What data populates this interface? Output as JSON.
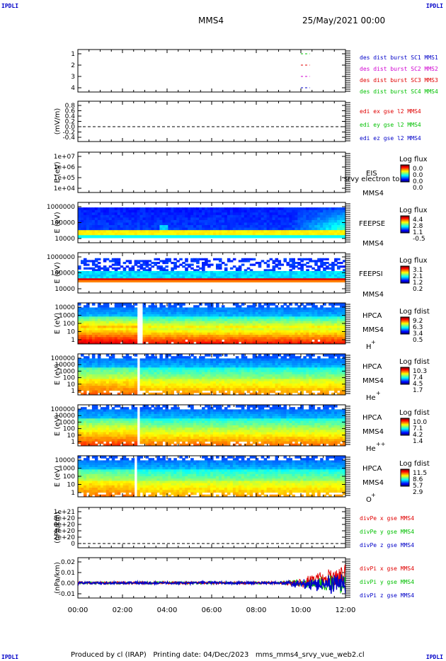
{
  "corners": {
    "top_left": "IPDLI",
    "top_right": "IPDLI",
    "bottom_left": "IPDLI",
    "bottom_right": "IPDLI"
  },
  "header": {
    "spacecraft": "MMS4",
    "date": "25/May/2021 00:00"
  },
  "footer": {
    "text": "Produced by cl (IRAP)   Printing date: 04/Dec/2023   mms_mms4_srvy_vue_web2.cl"
  },
  "colors": {
    "blue": "#0000c8",
    "red": "#e00000",
    "green": "#00c000",
    "magenta": "#d000d0"
  },
  "chart_data": [
    {
      "type": "line",
      "panel": "dist_burst",
      "ylabel": "",
      "yticks": [
        "1",
        "2",
        "3",
        "4"
      ],
      "ylim": [
        0.6,
        4.4
      ],
      "series": [
        {
          "name": "des dist burst SC1 MMS1",
          "color": "blue",
          "y": 1,
          "x": [
            10.0,
            10.4
          ]
        },
        {
          "name": "des dist burst SC2 MMS2",
          "color": "magenta",
          "y": 2,
          "x": [
            10.0,
            10.4
          ]
        },
        {
          "name": "des dist burst SC3 MMS3",
          "color": "red",
          "y": 3,
          "x": [
            10.0,
            10.4
          ]
        },
        {
          "name": "des dist burst SC4 MMS4",
          "color": "green",
          "y": 4,
          "x": [
            10.0,
            10.4
          ]
        }
      ]
    },
    {
      "type": "line",
      "panel": "edi",
      "ylabel": "(mV/m)",
      "yticks": [
        "0.8",
        "0.6",
        "0.4",
        "0.2",
        "0.0",
        "-0.2",
        "-0.4"
      ],
      "ylim": [
        -0.5,
        0.9
      ],
      "series": [
        {
          "name": "edi ex gse l2 MMS4",
          "color": "red"
        },
        {
          "name": "edi ey gse l2 MMS4",
          "color": "green"
        },
        {
          "name": "edi ez gse l2 MMS4",
          "color": "blue"
        }
      ],
      "zero_line": true
    },
    {
      "type": "heatmap",
      "panel": "eis",
      "ylabel": "E (eV)",
      "yticks": [
        "1e+07",
        "1e+06",
        "1e+05",
        "1e+04"
      ],
      "labels": [
        "EIS",
        "MMS4"
      ],
      "overlay_text": "l srvy electron to",
      "colorbar": {
        "title": "Log flux",
        "ticks": [
          "0.0",
          "0.0",
          "0.0",
          "0.0"
        ]
      },
      "empty": true
    },
    {
      "type": "heatmap",
      "panel": "feepse",
      "ylabel": "E (eV)",
      "yticks": [
        "1000000",
        "100000",
        "10000"
      ],
      "labels": [
        "FEEPSE",
        "MMS4"
      ],
      "colorbar": {
        "title": "Log flux",
        "ticks": [
          "4.4",
          "2.8",
          "1.1",
          "-0.5"
        ]
      }
    },
    {
      "type": "heatmap",
      "panel": "feepsi",
      "ylabel": "E (eV)",
      "yticks": [
        "1000000",
        "100000",
        "10000"
      ],
      "labels": [
        "FEEPSI",
        "MMS4"
      ],
      "colorbar": {
        "title": "Log flux",
        "ticks": [
          "3.1",
          "2.1",
          "1.2",
          "0.2"
        ]
      }
    },
    {
      "type": "heatmap",
      "panel": "hpca_h",
      "ylabel": "E (eV)",
      "yticks": [
        "10000",
        "1000",
        "100",
        "10",
        "1"
      ],
      "labels": [
        "HPCA",
        "MMS4"
      ],
      "species": "H",
      "charge": "+",
      "gap": [
        2.6,
        2.8
      ],
      "colorbar": {
        "title": "Log fdist",
        "ticks": [
          "9.2",
          "6.3",
          "3.4",
          "0.5"
        ]
      }
    },
    {
      "type": "heatmap",
      "panel": "hpca_he",
      "ylabel": "E (eV)",
      "yticks": [
        "100000",
        "10000",
        "1000",
        "100",
        "10",
        "1"
      ],
      "labels": [
        "HPCA",
        "MMS4"
      ],
      "species": "He",
      "charge": "+",
      "gap": [
        2.55,
        2.75
      ],
      "colorbar": {
        "title": "Log fdist",
        "ticks": [
          "10.3",
          "7.4",
          "4.5",
          "1.7"
        ]
      }
    },
    {
      "type": "heatmap",
      "panel": "hpca_hepp",
      "ylabel": "E (eV)",
      "yticks": [
        "100000",
        "10000",
        "1000",
        "100",
        "10",
        "1"
      ],
      "labels": [
        "HPCA",
        "MMS4"
      ],
      "species": "He",
      "charge": "++",
      "gap": [
        2.55,
        2.75
      ],
      "colorbar": {
        "title": "Log fdist",
        "ticks": [
          "10.0",
          "7.1",
          "4.2",
          "1.4"
        ]
      }
    },
    {
      "type": "heatmap",
      "panel": "hpca_o",
      "ylabel": "E (eV)",
      "yticks": [
        "10000",
        "1000",
        "100",
        "10",
        "1"
      ],
      "labels": [
        "HPCA",
        "MMS4"
      ],
      "species": "O",
      "charge": "+",
      "gap": [
        2.5,
        2.65
      ],
      "colorbar": {
        "title": "Log fdist",
        "ticks": [
          "11.5",
          "8.6",
          "5.7",
          "2.9"
        ]
      }
    },
    {
      "type": "line",
      "panel": "divpe",
      "ylabel": "(nPa/km)",
      "yticks": [
        "1e+21",
        "8e+20",
        "6e+20",
        "4e+20",
        "2e+20",
        "0"
      ],
      "series": [
        {
          "name": "divPe x gse MMS4",
          "color": "red"
        },
        {
          "name": "divPe y gse MMS4",
          "color": "green"
        },
        {
          "name": "divPe z gse MMS4",
          "color": "blue"
        }
      ],
      "zero_line": true
    },
    {
      "type": "line",
      "panel": "divpi",
      "ylabel": "(nPa/km)",
      "yticks": [
        "0.02",
        "0.01",
        "0.00",
        "-0.01"
      ],
      "ylim": [
        -0.015,
        0.025
      ],
      "series": [
        {
          "name": "divPi x gse MMS4",
          "color": "red"
        },
        {
          "name": "divPi y gse MMS4",
          "color": "green"
        },
        {
          "name": "divPi z gse MMS4",
          "color": "blue"
        }
      ]
    }
  ],
  "xaxis": {
    "unit": "hours",
    "range": [
      0,
      12
    ],
    "ticks": [
      "00:00",
      "02:00",
      "04:00",
      "06:00",
      "08:00",
      "10:00",
      "12:00"
    ]
  }
}
